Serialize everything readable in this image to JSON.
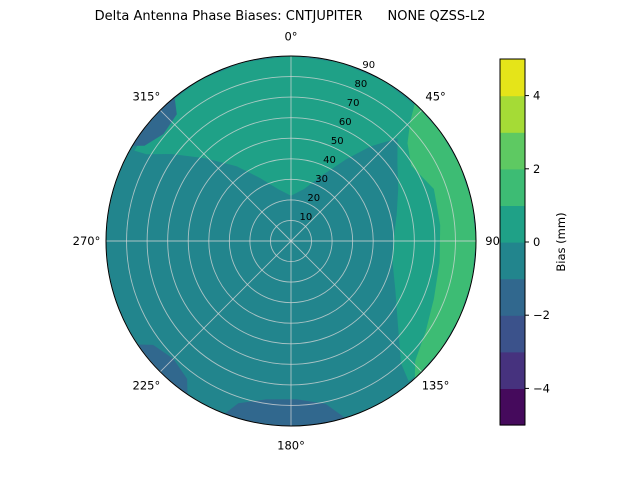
{
  "title": "Delta Antenna Phase Biases: CNTJUPITER      NONE QZSS-L2",
  "chart_data": {
    "type": "polar_contour",
    "title": "Delta Antenna Phase Biases: CNTJUPITER      NONE QZSS-L2",
    "colormap": "viridis",
    "background_color": "#ffffff",
    "grid_color": "#d8d8d8",
    "summary": "Polar sky map of antenna phase bias deltas. Most of the disk is near 0 mm; a +1 to +2 mm band hugs the eastern rim (azimuth ~45-135 deg), a 0 to +1 mm band covers the upper/right interior, and -1 to -2 mm patches sit at the rim near azimuths 180, 225 and 315 deg.",
    "angular_ticks": [
      {
        "az": 0,
        "label": "0°"
      },
      {
        "az": 45,
        "label": "45°"
      },
      {
        "az": 90,
        "label": "90°"
      },
      {
        "az": 135,
        "label": "135°"
      },
      {
        "az": 180,
        "label": "180°"
      },
      {
        "az": 225,
        "label": "225°"
      },
      {
        "az": 270,
        "label": "270°"
      },
      {
        "az": 315,
        "label": "315°"
      }
    ],
    "radial_ticks": [
      10,
      20,
      30,
      40,
      50,
      60,
      70,
      80,
      90
    ],
    "radial_max": 90,
    "rlabel_azimuth_deg": 22.5,
    "base_region": {
      "name": "base-teal",
      "bias_mm": -0.5,
      "color": "#22858d"
    },
    "regions": [
      {
        "name": "positive-band-0-to-1mm-upper-right",
        "bias_mm": 0.5,
        "color": "#1fa187",
        "points": [
          [
            300,
            88
          ],
          [
            315,
            90
          ],
          [
            330,
            90
          ],
          [
            345,
            90
          ],
          [
            0,
            90
          ],
          [
            15,
            90
          ],
          [
            30,
            90
          ],
          [
            45,
            90
          ],
          [
            60,
            90
          ],
          [
            75,
            90
          ],
          [
            90,
            90
          ],
          [
            105,
            90
          ],
          [
            120,
            90
          ],
          [
            135,
            90
          ],
          [
            140,
            89
          ],
          [
            138,
            80
          ],
          [
            128,
            66
          ],
          [
            115,
            56
          ],
          [
            100,
            50
          ],
          [
            88,
            50
          ],
          [
            76,
            53
          ],
          [
            64,
            58
          ],
          [
            54,
            64
          ],
          [
            46,
            72
          ],
          [
            40,
            60
          ],
          [
            34,
            48
          ],
          [
            26,
            36
          ],
          [
            14,
            26
          ],
          [
            0,
            22
          ],
          [
            346,
            26
          ],
          [
            334,
            34
          ],
          [
            324,
            45
          ],
          [
            314,
            58
          ],
          [
            306,
            72
          ],
          [
            301,
            82
          ]
        ]
      },
      {
        "name": "positive-band-1-to-2mm-east-rim",
        "bias_mm": 1.5,
        "color": "#3dbc74",
        "points": [
          [
            42,
            90
          ],
          [
            54,
            90
          ],
          [
            66,
            90
          ],
          [
            78,
            90
          ],
          [
            90,
            90
          ],
          [
            102,
            90
          ],
          [
            114,
            90
          ],
          [
            126,
            90
          ],
          [
            138,
            90
          ],
          [
            134,
            84
          ],
          [
            124,
            79
          ],
          [
            112,
            75
          ],
          [
            98,
            73
          ],
          [
            84,
            73
          ],
          [
            70,
            74
          ],
          [
            58,
            69
          ],
          [
            50,
            74
          ],
          [
            45,
            82
          ]
        ]
      },
      {
        "name": "negative-patch-south-rim",
        "bias_mm": -1.5,
        "color": "#31688e",
        "points": [
          [
            163,
            90
          ],
          [
            172,
            90
          ],
          [
            182,
            90
          ],
          [
            192,
            90
          ],
          [
            201,
            90
          ],
          [
            198,
            83
          ],
          [
            189,
            78
          ],
          [
            178,
            77
          ],
          [
            168,
            81
          ]
        ]
      },
      {
        "name": "negative-patch-southwest-rim",
        "bias_mm": -1.5,
        "color": "#31688e",
        "points": [
          [
            214,
            90
          ],
          [
            222,
            90
          ],
          [
            230,
            90
          ],
          [
            236,
            90
          ],
          [
            233,
            84
          ],
          [
            225,
            81
          ],
          [
            217,
            84
          ]
        ]
      },
      {
        "name": "negative-patch-northwest-rim",
        "bias_mm": -1.5,
        "color": "#31688e",
        "points": [
          [
            301,
            90
          ],
          [
            308,
            90
          ],
          [
            316,
            90
          ],
          [
            321,
            90
          ],
          [
            318,
            83
          ],
          [
            310,
            81
          ],
          [
            303,
            85
          ]
        ]
      }
    ],
    "colorbar": {
      "label": "Bias (mm)",
      "vmin": -5,
      "vmax": 5,
      "ticks": [
        {
          "value": -4,
          "label": "−4"
        },
        {
          "value": -2,
          "label": "−2"
        },
        {
          "value": 0,
          "label": "0"
        },
        {
          "value": 2,
          "label": "2"
        },
        {
          "value": 4,
          "label": "4"
        }
      ],
      "band_colors": [
        "#450a5c",
        "#46327e",
        "#3b528b",
        "#31688e",
        "#22858d",
        "#1fa187",
        "#3dbc74",
        "#5ec962",
        "#a5db36",
        "#e5e419"
      ]
    }
  }
}
